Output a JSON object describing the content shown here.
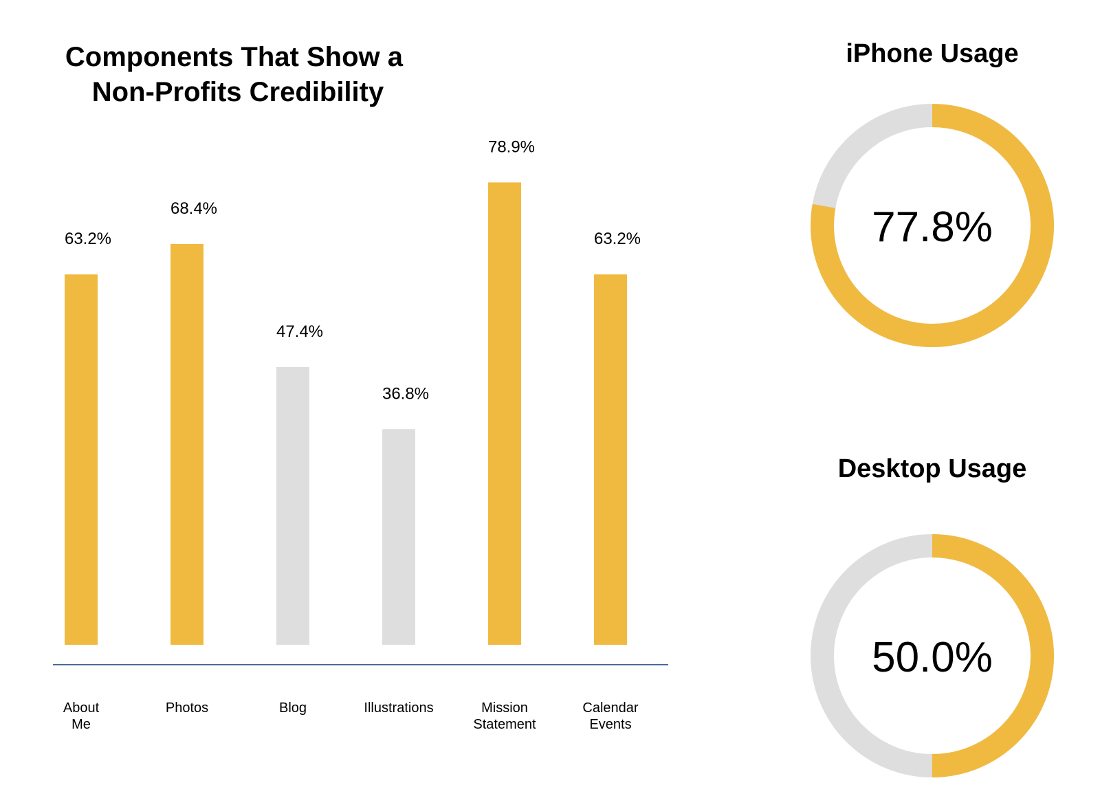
{
  "chart_data": [
    {
      "type": "bar",
      "title_lines": [
        "Components That Show a",
        "Non-Profits Credibility"
      ],
      "categories": [
        [
          "About",
          "Me"
        ],
        [
          "Photos"
        ],
        [
          "Blog"
        ],
        [
          "Illustrations"
        ],
        [
          "Mission",
          "Statement"
        ],
        [
          "Calendar",
          "Events"
        ]
      ],
      "values": [
        63.2,
        68.4,
        47.4,
        36.8,
        78.9,
        63.2
      ],
      "value_labels": [
        "63.2%",
        "68.4%",
        "47.4%",
        "36.8%",
        "78.9%",
        "63.2%"
      ],
      "highlighted": [
        true,
        true,
        false,
        false,
        true,
        true
      ],
      "unit": "%",
      "ylim": [
        0,
        100
      ],
      "grid": false,
      "colors": {
        "highlight": "#F0BA41",
        "muted": "#DEDEDE",
        "axis": "#4A6A9A"
      }
    },
    {
      "type": "pie",
      "variant": "donut",
      "title": "iPhone Usage",
      "value": 77.8,
      "center_label": "77.8%",
      "colors": {
        "value": "#F0BA41",
        "remainder": "#DEDEDE"
      }
    },
    {
      "type": "pie",
      "variant": "donut",
      "title": "Desktop Usage",
      "value": 50.0,
      "center_label": "50.0%",
      "colors": {
        "value": "#F0BA41",
        "remainder": "#DEDEDE"
      }
    }
  ]
}
